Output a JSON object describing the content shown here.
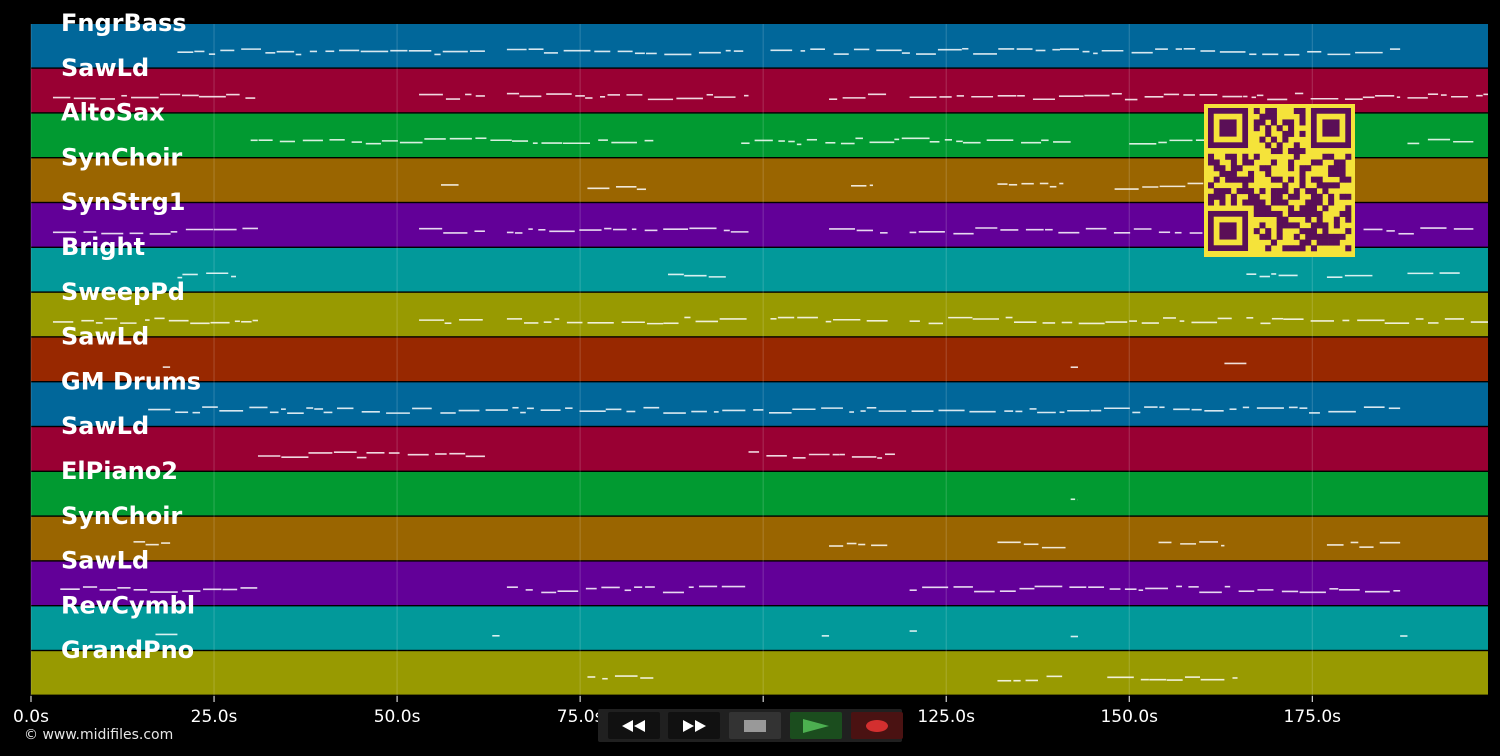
{
  "app": {
    "credit": "© www.midifiles.com"
  },
  "colors": {
    "background": "#000000",
    "separator": "#000000",
    "grid": "#ffffff",
    "note": "#ffffff",
    "qr_bg": "#f5e33a",
    "qr_fg": "#5a0f57"
  },
  "tracks": [
    {
      "name": "FngrBass",
      "color": "#01679a"
    },
    {
      "name": "SawLd",
      "color": "#990033"
    },
    {
      "name": "AltoSax",
      "color": "#019a31"
    },
    {
      "name": "SynChoir",
      "color": "#9a6500"
    },
    {
      "name": "SynStrg1",
      "color": "#620098"
    },
    {
      "name": "Bright",
      "color": "#02999a"
    },
    {
      "name": "SweepPd",
      "color": "#989a01"
    },
    {
      "name": "SawLd",
      "color": "#982800"
    },
    {
      "name": "GM Drums",
      "color": "#01679a"
    },
    {
      "name": "SawLd",
      "color": "#990033"
    },
    {
      "name": "ElPiano2",
      "color": "#019a31"
    },
    {
      "name": "SynChoir",
      "color": "#9a6500"
    },
    {
      "name": "SawLd",
      "color": "#620098"
    },
    {
      "name": "RevCymbl",
      "color": "#02999a"
    },
    {
      "name": "GrandPno",
      "color": "#989a01"
    }
  ],
  "timeline": {
    "min_seconds": 0,
    "max_seconds": 199,
    "ticks": [
      {
        "value": 0,
        "label": "0.0s"
      },
      {
        "value": 25,
        "label": "25.0s"
      },
      {
        "value": 50,
        "label": "50.0s"
      },
      {
        "value": 75,
        "label": "75.0s"
      },
      {
        "value": 100,
        "label": "100.0s"
      },
      {
        "value": 125,
        "label": "125.0s"
      },
      {
        "value": 150,
        "label": "150.0s"
      },
      {
        "value": 175,
        "label": "175.0s"
      }
    ]
  },
  "note_segments": [
    {
      "track": 0,
      "spans": [
        [
          20,
          62
        ],
        [
          65,
          98
        ],
        [
          101,
          187
        ]
      ]
    },
    {
      "track": 1,
      "spans": [
        [
          3,
          31
        ],
        [
          53,
          62
        ],
        [
          65,
          98
        ],
        [
          109,
          117
        ],
        [
          120,
          187
        ],
        [
          188,
          199
        ]
      ]
    },
    {
      "track": 2,
      "spans": [
        [
          30,
          85
        ],
        [
          97,
          142
        ],
        [
          150,
          164
        ],
        [
          188,
          197
        ]
      ]
    },
    {
      "track": 3,
      "spans": [
        [
          56,
          59
        ],
        [
          76,
          84
        ],
        [
          112,
          115
        ],
        [
          132,
          141
        ],
        [
          148,
          163
        ]
      ]
    },
    {
      "track": 4,
      "spans": [
        [
          3,
          31
        ],
        [
          53,
          62
        ],
        [
          65,
          98
        ],
        [
          109,
          117
        ],
        [
          120,
          160
        ],
        [
          182,
          197
        ]
      ]
    },
    {
      "track": 5,
      "spans": [
        [
          20,
          28
        ],
        [
          87,
          95
        ],
        [
          166,
          173
        ],
        [
          177,
          184
        ],
        [
          188,
          196
        ]
      ]
    },
    {
      "track": 6,
      "spans": [
        [
          3,
          31
        ],
        [
          53,
          62
        ],
        [
          65,
          98
        ],
        [
          101,
          117
        ],
        [
          120,
          164
        ],
        [
          166,
          199
        ]
      ]
    },
    {
      "track": 7,
      "spans": [
        [
          18,
          19
        ],
        [
          142,
          143
        ],
        [
          163,
          166
        ]
      ]
    },
    {
      "track": 8,
      "spans": [
        [
          16,
          187
        ]
      ]
    },
    {
      "track": 9,
      "spans": [
        [
          31,
          62
        ],
        [
          98,
          118
        ]
      ]
    },
    {
      "track": 10,
      "spans": [
        [
          142,
          143
        ]
      ]
    },
    {
      "track": 11,
      "spans": [
        [
          14,
          19
        ],
        [
          109,
          117
        ],
        [
          132,
          142
        ],
        [
          154,
          163
        ],
        [
          177,
          187
        ]
      ]
    },
    {
      "track": 12,
      "spans": [
        [
          4,
          31
        ],
        [
          65,
          98
        ],
        [
          120,
          187
        ]
      ]
    },
    {
      "track": 13,
      "spans": [
        [
          17,
          20
        ],
        [
          63,
          64
        ],
        [
          108,
          109
        ],
        [
          120,
          121
        ],
        [
          142,
          143
        ],
        [
          187,
          188
        ]
      ]
    },
    {
      "track": 14,
      "spans": [
        [
          76,
          85
        ],
        [
          132,
          141
        ],
        [
          147,
          165
        ]
      ]
    }
  ],
  "transport": {
    "rewind_icon": "rewind-icon",
    "fast_forward_icon": "fast-forward-icon",
    "stop_icon": "stop-icon",
    "play_icon": "play-icon",
    "record_icon": "record-icon",
    "play_color": "#4caf50",
    "record_color": "#d32f2f"
  }
}
